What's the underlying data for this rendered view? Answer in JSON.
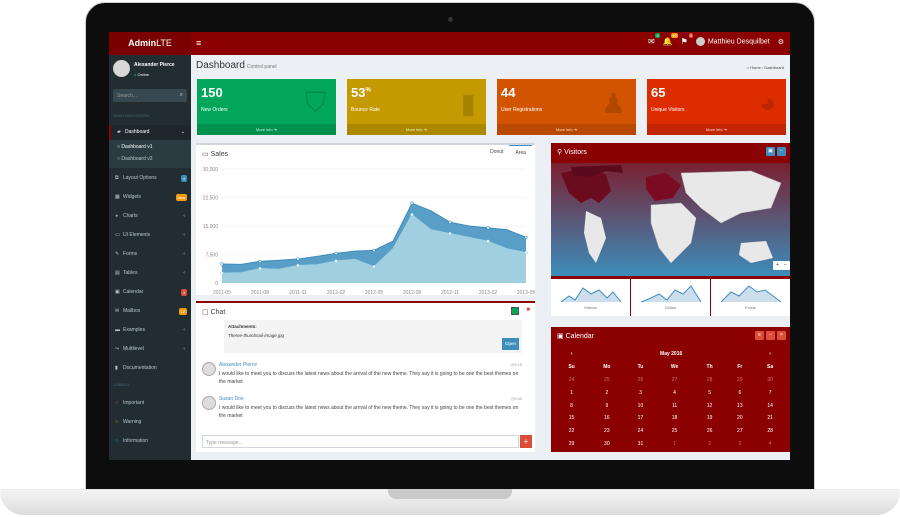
{
  "header": {
    "logo_bold": "Admin",
    "logo_rest": "LTE",
    "toggle_icon": "≡",
    "badges": [
      "4",
      "10",
      "9"
    ],
    "user_name": "Matthieu Desquilbet"
  },
  "sidebar": {
    "user_name": "Alexander Pierce",
    "user_status": "Online",
    "search_placeholder": "Search...",
    "nav_header": "MAIN NAVIGATION",
    "items": [
      {
        "label": "Dashboard",
        "icon": "tachometer-icon"
      },
      {
        "label": "Dashboard v1"
      },
      {
        "label": "Dashboard v2"
      },
      {
        "label": "Layout Options",
        "badge": "4",
        "badge_color": "#3c8dbc"
      },
      {
        "label": "Widgets",
        "badge": "new",
        "badge_color": "#f39c12"
      },
      {
        "label": "Charts"
      },
      {
        "label": "UI Elements"
      },
      {
        "label": "Forms"
      },
      {
        "label": "Tables"
      },
      {
        "label": "Calendar",
        "badge": "3",
        "badge_color": "#dd4b39"
      },
      {
        "label": "Mailbox",
        "badge": "12",
        "badge_color": "#f39c12"
      },
      {
        "label": "Examples"
      },
      {
        "label": "Multilevel"
      },
      {
        "label": "Documentation"
      }
    ],
    "labels_header": "LABELS",
    "labels": [
      {
        "label": "Important",
        "color": "#dd4b39"
      },
      {
        "label": "Warning",
        "color": "#f39c12"
      },
      {
        "label": "Information",
        "color": "#00c0ef"
      }
    ]
  },
  "content": {
    "title": "Dashboard",
    "subtitle": "Control panel",
    "breadcrumb_home": "Home",
    "breadcrumb_current": "Dashboard"
  },
  "stat_boxes": [
    {
      "value": "150",
      "suffix": "",
      "label": "New Orders",
      "footer": "More info",
      "color": "#00a65a"
    },
    {
      "value": "53",
      "suffix": "%",
      "label": "Bounce Rate",
      "footer": "More info",
      "color": "#c49a00"
    },
    {
      "value": "44",
      "suffix": "",
      "label": "User Registrations",
      "footer": "More info",
      "color": "#d35400"
    },
    {
      "value": "65",
      "suffix": "",
      "label": "Unique Visitors",
      "footer": "More info",
      "color": "#dd2c00"
    }
  ],
  "sales": {
    "title": "Sales",
    "tabs": [
      "Donut",
      "Area"
    ],
    "active_tab": "Area"
  },
  "chart_data": {
    "type": "area",
    "title": "Sales",
    "categories": [
      "2011-05",
      "2011-08",
      "2011-11",
      "2012-02",
      "2012-05",
      "2012-08",
      "2012-11",
      "2013-02",
      "2013-05"
    ],
    "x": [
      0,
      0.5,
      1,
      1.5,
      2,
      2.5,
      3,
      3.5,
      4,
      4.5,
      5,
      5.5,
      6,
      6.5,
      7,
      7.5,
      8
    ],
    "series": [
      {
        "values": [
          2600,
          2700,
          3800,
          3600,
          4600,
          4800,
          5800,
          6200,
          4300,
          9000,
          18000,
          14000,
          13000,
          12000,
          11000,
          9000,
          8000
        ]
      },
      {
        "values": [
          5000,
          4900,
          5700,
          6000,
          6300,
          7000,
          7800,
          8400,
          8600,
          11000,
          21000,
          19000,
          16000,
          15000,
          14500,
          14000,
          12000
        ]
      }
    ],
    "yticks": [
      "30,000",
      "22,500",
      "15,000",
      "7,500",
      "0"
    ],
    "ylim": [
      0,
      30000
    ],
    "colors": [
      "#a0d0e0",
      "#3c8dbc"
    ]
  },
  "chat": {
    "title": "Chat",
    "attachment_label": "Attachments:",
    "attachment_file": "Theme-thumbnail-image.jpg",
    "open_button": "Open",
    "messages": [
      {
        "name": "Alexander Pierce",
        "time": "5:15",
        "text": "I would like to meet you to discuss the latest news about the arrival of the new theme. They say it is going to be one the best themes on the market"
      },
      {
        "name": "Susan Doe",
        "time": "5:30",
        "text": "I would like to meet you to discuss the latest news about the arrival of the new theme. They say it is going to be one the best themes on the market"
      }
    ],
    "input_placeholder": "Type message..."
  },
  "visitors": {
    "title": "Visitors",
    "sparklines": [
      "Visitors",
      "Online",
      "Exists"
    ]
  },
  "calendar": {
    "title": "Calendar",
    "month": "May 2016",
    "days": [
      "Su",
      "Mo",
      "Tu",
      "We",
      "Th",
      "Fr",
      "Sa"
    ],
    "weeks": [
      [
        "24",
        "25",
        "26",
        "27",
        "28",
        "29",
        "30"
      ],
      [
        "1",
        "2",
        "3",
        "4",
        "5",
        "6",
        "7"
      ],
      [
        "8",
        "9",
        "10",
        "11",
        "12",
        "13",
        "14"
      ],
      [
        "15",
        "16",
        "17",
        "18",
        "19",
        "20",
        "21"
      ],
      [
        "22",
        "23",
        "24",
        "25",
        "26",
        "27",
        "28"
      ],
      [
        "29",
        "30",
        "31",
        "1",
        "2",
        "3",
        "4"
      ]
    ]
  }
}
